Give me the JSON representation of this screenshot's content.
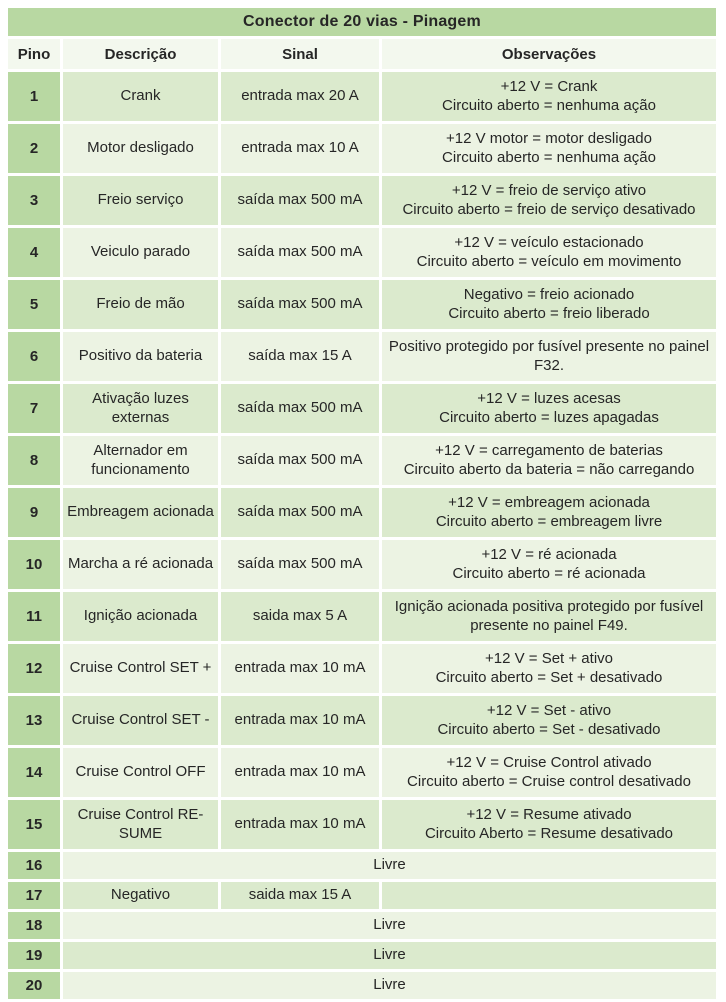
{
  "colors": {
    "title_bg": "#b8d8a2",
    "pin_bg": "#b8d8a2",
    "header_bg": "#f3f8ee",
    "row_odd": "#dbeacd",
    "row_even": "#ecf3e3",
    "text": "#262626",
    "page_bg": "#ffffff"
  },
  "table": {
    "title": "Conector de 20 vias - Pinagem",
    "headers": [
      "Pino",
      "Descrição",
      "Sinal",
      "Observações"
    ],
    "rows": [
      {
        "pino": "1",
        "descricao": "Crank",
        "sinal": "entrada max 20 A",
        "obs": "+12 V = Crank\nCircuito aberto = nenhuma ação"
      },
      {
        "pino": "2",
        "descricao": "Motor desligado",
        "sinal": "entrada max 10 A",
        "obs": "+12 V motor = motor desligado\nCircuito aberto = nenhuma ação"
      },
      {
        "pino": "3",
        "descricao": "Freio serviço",
        "sinal": "saída max 500 mA",
        "obs": "+12 V = freio de serviço ativo\nCircuito aberto = freio de serviço desativado"
      },
      {
        "pino": "4",
        "descricao": "Veiculo parado",
        "sinal": "saída max 500 mA",
        "obs": "+12 V = veículo estacionado\nCircuito aberto = veículo em movimento"
      },
      {
        "pino": "5",
        "descricao": "Freio de mão",
        "sinal": "saída max 500 mA",
        "obs": "Negativo = freio acionado\nCircuito aberto = freio liberado"
      },
      {
        "pino": "6",
        "descricao": "Positivo da bateria",
        "sinal": "saída max 15 A",
        "obs": "Positivo protegido por fusível presente no painel F32."
      },
      {
        "pino": "7",
        "descricao": "Ativação luzes externas",
        "sinal": "saída max 500 mA",
        "obs": "+12 V = luzes acesas\nCircuito aberto = luzes apagadas"
      },
      {
        "pino": "8",
        "descricao": "Alternador em funcionamento",
        "sinal": "saída max 500 mA",
        "obs": "+12 V = carregamento de baterias\nCircuito aberto da bateria = não carregando"
      },
      {
        "pino": "9",
        "descricao": "Embreagem acionada",
        "sinal": "saída max 500 mA",
        "obs": "+12 V = embreagem acionada\nCircuito aberto = embreagem livre"
      },
      {
        "pino": "10",
        "descricao": "Marcha a ré acionada",
        "sinal": "saída max 500 mA",
        "obs": "+12 V = ré acionada\nCircuito aberto = ré acionada"
      },
      {
        "pino": "11",
        "descricao": "Ignição acionada",
        "sinal": "saida max 5 A",
        "obs": "Ignição acionada positiva protegido por fusível presente no painel F49."
      },
      {
        "pino": "12",
        "descricao": "Cruise Control SET +",
        "sinal": "entrada max 10 mA",
        "obs": "+12 V = Set + ativo\nCircuito aberto = Set + desativado"
      },
      {
        "pino": "13",
        "descricao": "Cruise Control SET -",
        "sinal": "entrada max 10 mA",
        "obs": "+12 V = Set - ativo\nCircuito aberto = Set - desativado"
      },
      {
        "pino": "14",
        "descricao": "Cruise Control OFF",
        "sinal": "entrada max 10 mA",
        "obs": "+12 V = Cruise Control ativado\nCircuito aberto = Cruise control desativado"
      },
      {
        "pino": "15",
        "descricao": "Cruise Control RE-SUME",
        "sinal": "entrada max 10 mA",
        "obs": "+12 V = Resume ativado\nCircuito Aberto = Resume desativado"
      },
      {
        "pino": "16",
        "livre": "Livre"
      },
      {
        "pino": "17",
        "descricao": "Negativo",
        "sinal": "saida max 15 A",
        "obs": "",
        "short": true
      },
      {
        "pino": "18",
        "livre": "Livre"
      },
      {
        "pino": "19",
        "livre": "Livre"
      },
      {
        "pino": "20",
        "livre": "Livre"
      }
    ]
  }
}
